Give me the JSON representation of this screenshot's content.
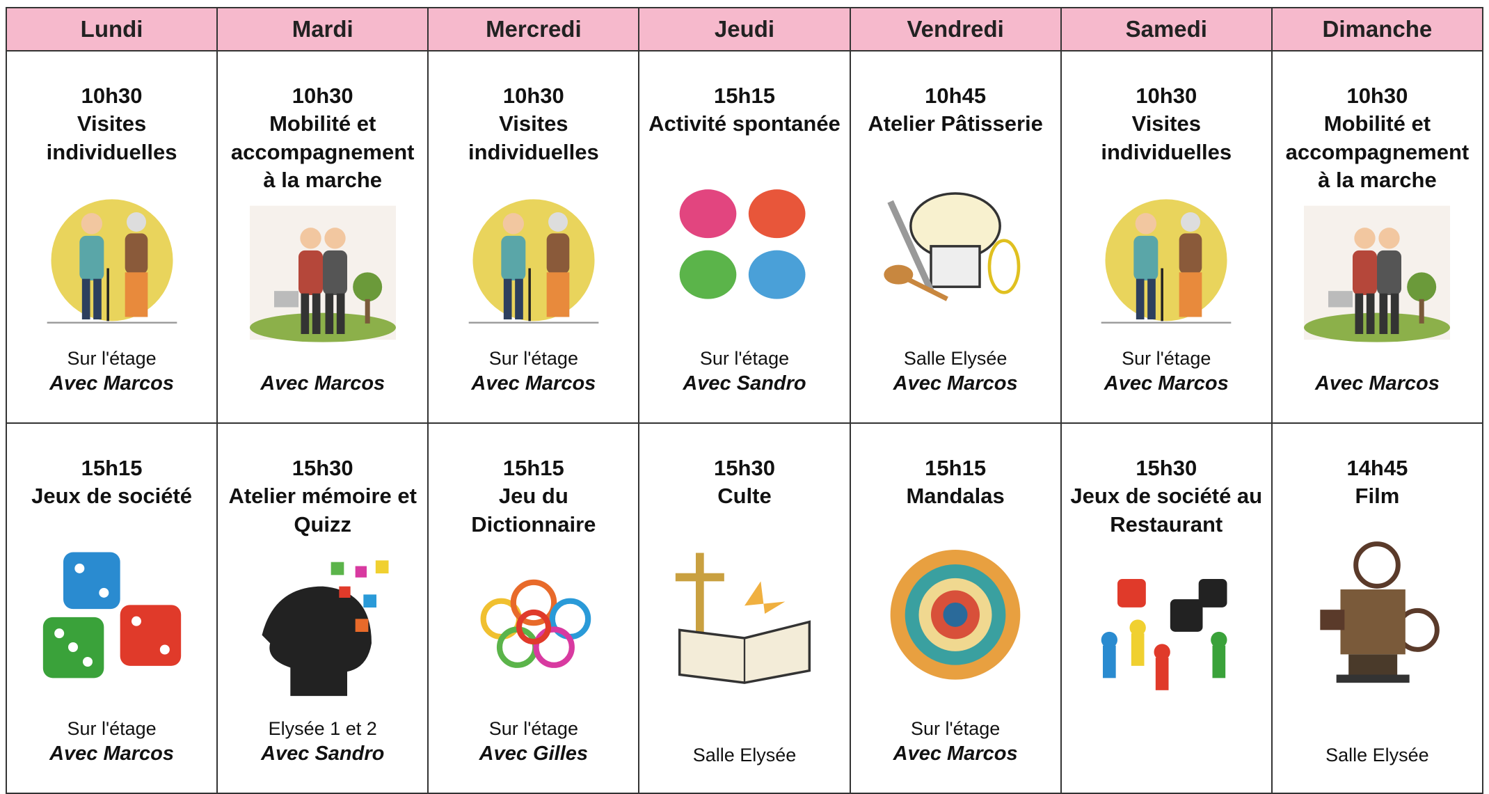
{
  "header": {
    "days": [
      "Lundi",
      "Mardi",
      "Mercredi",
      "Jeudi",
      "Vendredi",
      "Samedi",
      "Dimanche"
    ]
  },
  "rows": [
    {
      "cells": [
        {
          "time": "10h30",
          "title": "Visites individuelles",
          "location": "Sur l'étage",
          "with": "Avec Marcos"
        },
        {
          "time": "10h30",
          "title": "Mobilité et accompagnement à la marche",
          "with": "Avec Marcos"
        },
        {
          "time": "10h30",
          "title": "Visites individuelles",
          "location": "Sur l'étage",
          "with": "Avec Marcos"
        },
        {
          "time": "15h15",
          "title": "Activité spontanée",
          "location": "Sur l'étage",
          "with": "Avec Sandro"
        },
        {
          "time": "10h45",
          "title": "Atelier Pâtisserie",
          "location": "Salle Elysée",
          "with": "Avec Marcos"
        },
        {
          "time": "10h30",
          "title": "Visites individuelles",
          "location": "Sur l'étage",
          "with": "Avec Marcos"
        },
        {
          "time": "10h30",
          "title": "Mobilité et accompagnement à la marche",
          "with": "Avec Marcos"
        }
      ]
    },
    {
      "cells": [
        {
          "time": "15h15",
          "title": "Jeux de société",
          "location": "Sur l'étage",
          "with": "Avec Marcos"
        },
        {
          "time": "15h30",
          "title": "Atelier mémoire et Quizz",
          "location": "Elysée 1 et 2",
          "with": "Avec Sandro"
        },
        {
          "time": "15h15",
          "title": "Jeu du Dictionnaire",
          "location": "Sur l'étage",
          "with": "Avec Gilles"
        },
        {
          "time": "15h30",
          "title": "Culte",
          "location": "Salle Elysée"
        },
        {
          "time": "15h15",
          "title": "Mandalas",
          "location": "Sur l'étage",
          "with": "Avec Marcos"
        },
        {
          "time": "15h30",
          "title": "Jeux de société au Restaurant"
        },
        {
          "time": "14h45",
          "title": "Film",
          "location": "Salle Elysée"
        }
      ]
    }
  ]
}
